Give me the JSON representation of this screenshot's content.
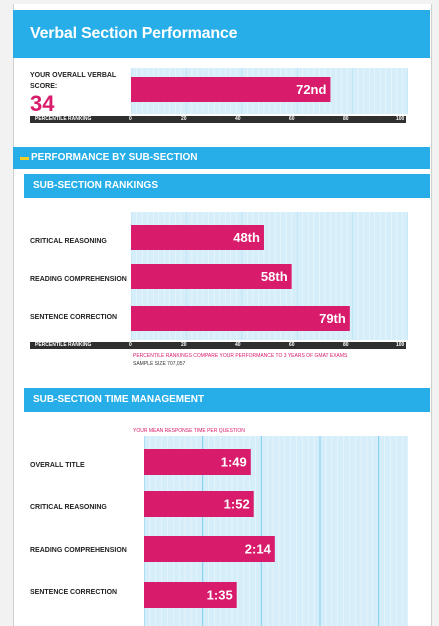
{
  "header": {
    "title": "Verbal Section Performance"
  },
  "overall": {
    "label_line1": "YOUR OVERALL VERBAL",
    "label_line2": "SCORE:",
    "score": "34",
    "axis_label": "PERCENTILE RANKING",
    "ticks": [
      "0",
      "20",
      "40",
      "60",
      "80",
      "100"
    ]
  },
  "performance_header": "PERFORMANCE BY SUB-SECTION",
  "rankings": {
    "title": "SUB-SECTION RANKINGS",
    "axis_label": "PERCENTILE RANKING",
    "ticks": [
      "0",
      "20",
      "40",
      "60",
      "80",
      "100"
    ],
    "note": "PERCENTILE RANKINGS COMPARE YOUR PERFORMANCE TO 3 YEARS OF GMAT EXAMS",
    "sample": "SAMPLE SIZE 707,057"
  },
  "time": {
    "title": "SUB-SECTION TIME MANAGEMENT",
    "note": "YOUR MEAN RESPONSE TIME PER QUESTION"
  },
  "colors": {
    "accent": "#27aee8",
    "bar": "#d81b6b",
    "track": "#d6eef9",
    "axis": "#2f2f2f"
  },
  "chart_data": [
    {
      "type": "bar",
      "orientation": "horizontal",
      "title": "Verbal Section Performance",
      "xlabel": "PERCENTILE RANKING",
      "categories": [
        "YOUR OVERALL VERBAL SCORE"
      ],
      "values": [
        72
      ],
      "data_labels": [
        "72nd"
      ],
      "xlim": [
        0,
        100
      ]
    },
    {
      "type": "bar",
      "orientation": "horizontal",
      "title": "SUB-SECTION RANKINGS",
      "xlabel": "PERCENTILE RANKING",
      "categories": [
        "CRITICAL REASONING",
        "READING COMPREHENSION",
        "SENTENCE CORRECTION"
      ],
      "values": [
        48,
        58,
        79
      ],
      "data_labels": [
        "48th",
        "58th",
        "79th"
      ],
      "xlim": [
        0,
        100
      ]
    },
    {
      "type": "bar",
      "orientation": "horizontal",
      "title": "SUB-SECTION TIME MANAGEMENT",
      "categories": [
        "OVERALL TITLE",
        "CRITICAL REASONING",
        "READING COMPREHENSION",
        "SENTENCE CORRECTION"
      ],
      "values": [
        1.82,
        1.87,
        2.23,
        1.58
      ],
      "data_labels": [
        "1:49",
        "1:52",
        "2:14",
        "1:35"
      ],
      "xlim": [
        0,
        4.5
      ]
    }
  ]
}
